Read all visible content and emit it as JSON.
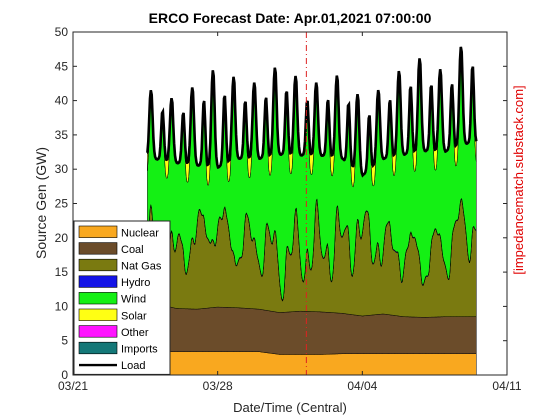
{
  "chart_data": {
    "type": "area",
    "title": "ERCO Forecast Date: Apr.01,2021 07:00:00",
    "xlabel": "Date/Time (Central)",
    "ylabel": "Source Gen (GW)",
    "side_label": "[impedancematch.substack.com]",
    "x_ticks": [
      "03/21",
      "03/28",
      "04/04",
      "04/11"
    ],
    "y_ticks": [
      "0",
      "5",
      "10",
      "15",
      "20",
      "25",
      "30",
      "35",
      "40",
      "45",
      "50"
    ],
    "xlim": [
      "2021-03-21",
      "2021-04-11"
    ],
    "ylim": [
      0,
      50
    ],
    "forecast_marker_date": "2021-04-01 07:00",
    "legend_position": "bottom-left",
    "days": [
      "03/25",
      "03/26",
      "03/27",
      "03/28",
      "03/29",
      "03/30",
      "03/31",
      "04/01",
      "04/02",
      "04/03",
      "04/04",
      "04/05",
      "04/06",
      "04/07",
      "04/08",
      "04/09"
    ],
    "series": [
      {
        "name": "Nuclear",
        "color": "#F9A81F",
        "values": [
          3.4,
          3.4,
          3.4,
          3.4,
          3.4,
          3.4,
          3.0,
          3.0,
          3.0,
          3.1,
          3.1,
          3.1,
          3.1,
          3.1,
          3.1,
          3.1
        ]
      },
      {
        "name": "Coal",
        "color": "#6B4C2A",
        "values": [
          7.0,
          6.3,
          6.2,
          6.5,
          6.4,
          6.2,
          6.1,
          6.3,
          6.2,
          5.9,
          5.5,
          5.8,
          5.4,
          5.3,
          5.4,
          5.4
        ]
      },
      {
        "name": "Nat Gas",
        "color": "#7A7A10",
        "values": [
          8.5,
          8.0,
          11.5,
          12.5,
          9.5,
          10.5,
          8.0,
          9.5,
          10.0,
          11.0,
          12.5,
          10.5,
          10.0,
          9.0,
          10.5,
          14.0
        ]
      },
      {
        "name": "Hydro",
        "color": "#1414E6",
        "values": [
          0.1,
          0.1,
          0.1,
          0.1,
          0.1,
          0.1,
          0.1,
          0.1,
          0.1,
          0.1,
          0.1,
          0.1,
          0.1,
          0.1,
          0.1,
          0.1
        ]
      },
      {
        "name": "Wind",
        "color": "#14F014",
        "values": [
          14.0,
          13.0,
          10.5,
          7.0,
          12.0,
          13.0,
          15.0,
          14.0,
          11.0,
          9.0,
          5.5,
          8.0,
          12.0,
          14.0,
          14.0,
          9.0
        ]
      },
      {
        "name": "Solar",
        "color": "#FFFF14",
        "values": [
          0.8,
          0.8,
          0.9,
          0.9,
          0.9,
          0.9,
          0.9,
          0.9,
          0.9,
          0.9,
          0.9,
          0.9,
          0.9,
          0.9,
          0.9,
          0.9
        ]
      },
      {
        "name": "Other",
        "color": "#FF14FF",
        "values": [
          0.1,
          0.1,
          0.1,
          0.1,
          0.1,
          0.1,
          0.1,
          0.1,
          0.1,
          0.1,
          0.1,
          0.1,
          0.1,
          0.1,
          0.1,
          0.1
        ]
      },
      {
        "name": "Imports",
        "color": "#147878",
        "values": [
          0.1,
          0.1,
          0.1,
          0.1,
          0.1,
          0.1,
          0.1,
          0.1,
          0.1,
          0.1,
          0.1,
          0.1,
          0.1,
          0.1,
          0.1,
          0.1
        ]
      },
      {
        "name": "Load",
        "color": "#000000",
        "type": "line",
        "peak": [
          41.5,
          40.0,
          42.5,
          45.0,
          43.0,
          42.5,
          45.5,
          43.0,
          42.5,
          44.0,
          40.0,
          42.0,
          45.0,
          46.5,
          44.0,
          49.0
        ],
        "trough": [
          31.0,
          30.5,
          30.0,
          29.5,
          31.0,
          31.0,
          31.5,
          31.5,
          31.5,
          31.0,
          28.5,
          31.0,
          31.5,
          32.0,
          32.0,
          33.0
        ]
      }
    ]
  }
}
